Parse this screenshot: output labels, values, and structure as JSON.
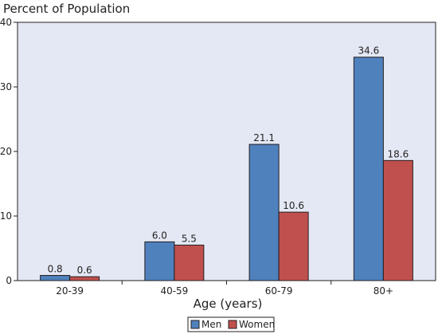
{
  "chart_data": {
    "type": "bar",
    "title": "Percent of Population",
    "xlabel": "Age (years)",
    "ylabel": "",
    "categories": [
      "20-39",
      "40-59",
      "60-79",
      "80+"
    ],
    "series": [
      {
        "name": "Men",
        "values": [
          0.8,
          6.0,
          21.1,
          34.6
        ],
        "labels": [
          "0.8",
          "6.0",
          "21.1",
          "34.6"
        ],
        "color": "#4f81bd"
      },
      {
        "name": "Women",
        "values": [
          0.6,
          5.5,
          10.6,
          18.6
        ],
        "labels": [
          "0.6",
          "5.5",
          "10.6",
          "18.6"
        ],
        "color": "#c0504d"
      }
    ],
    "ylim": [
      0,
      40
    ],
    "yticks": [
      "0",
      "10",
      "20",
      "30",
      "40"
    ],
    "grid": false,
    "legend_position": "bottom-center",
    "plot_background": "#e3e8f4"
  }
}
